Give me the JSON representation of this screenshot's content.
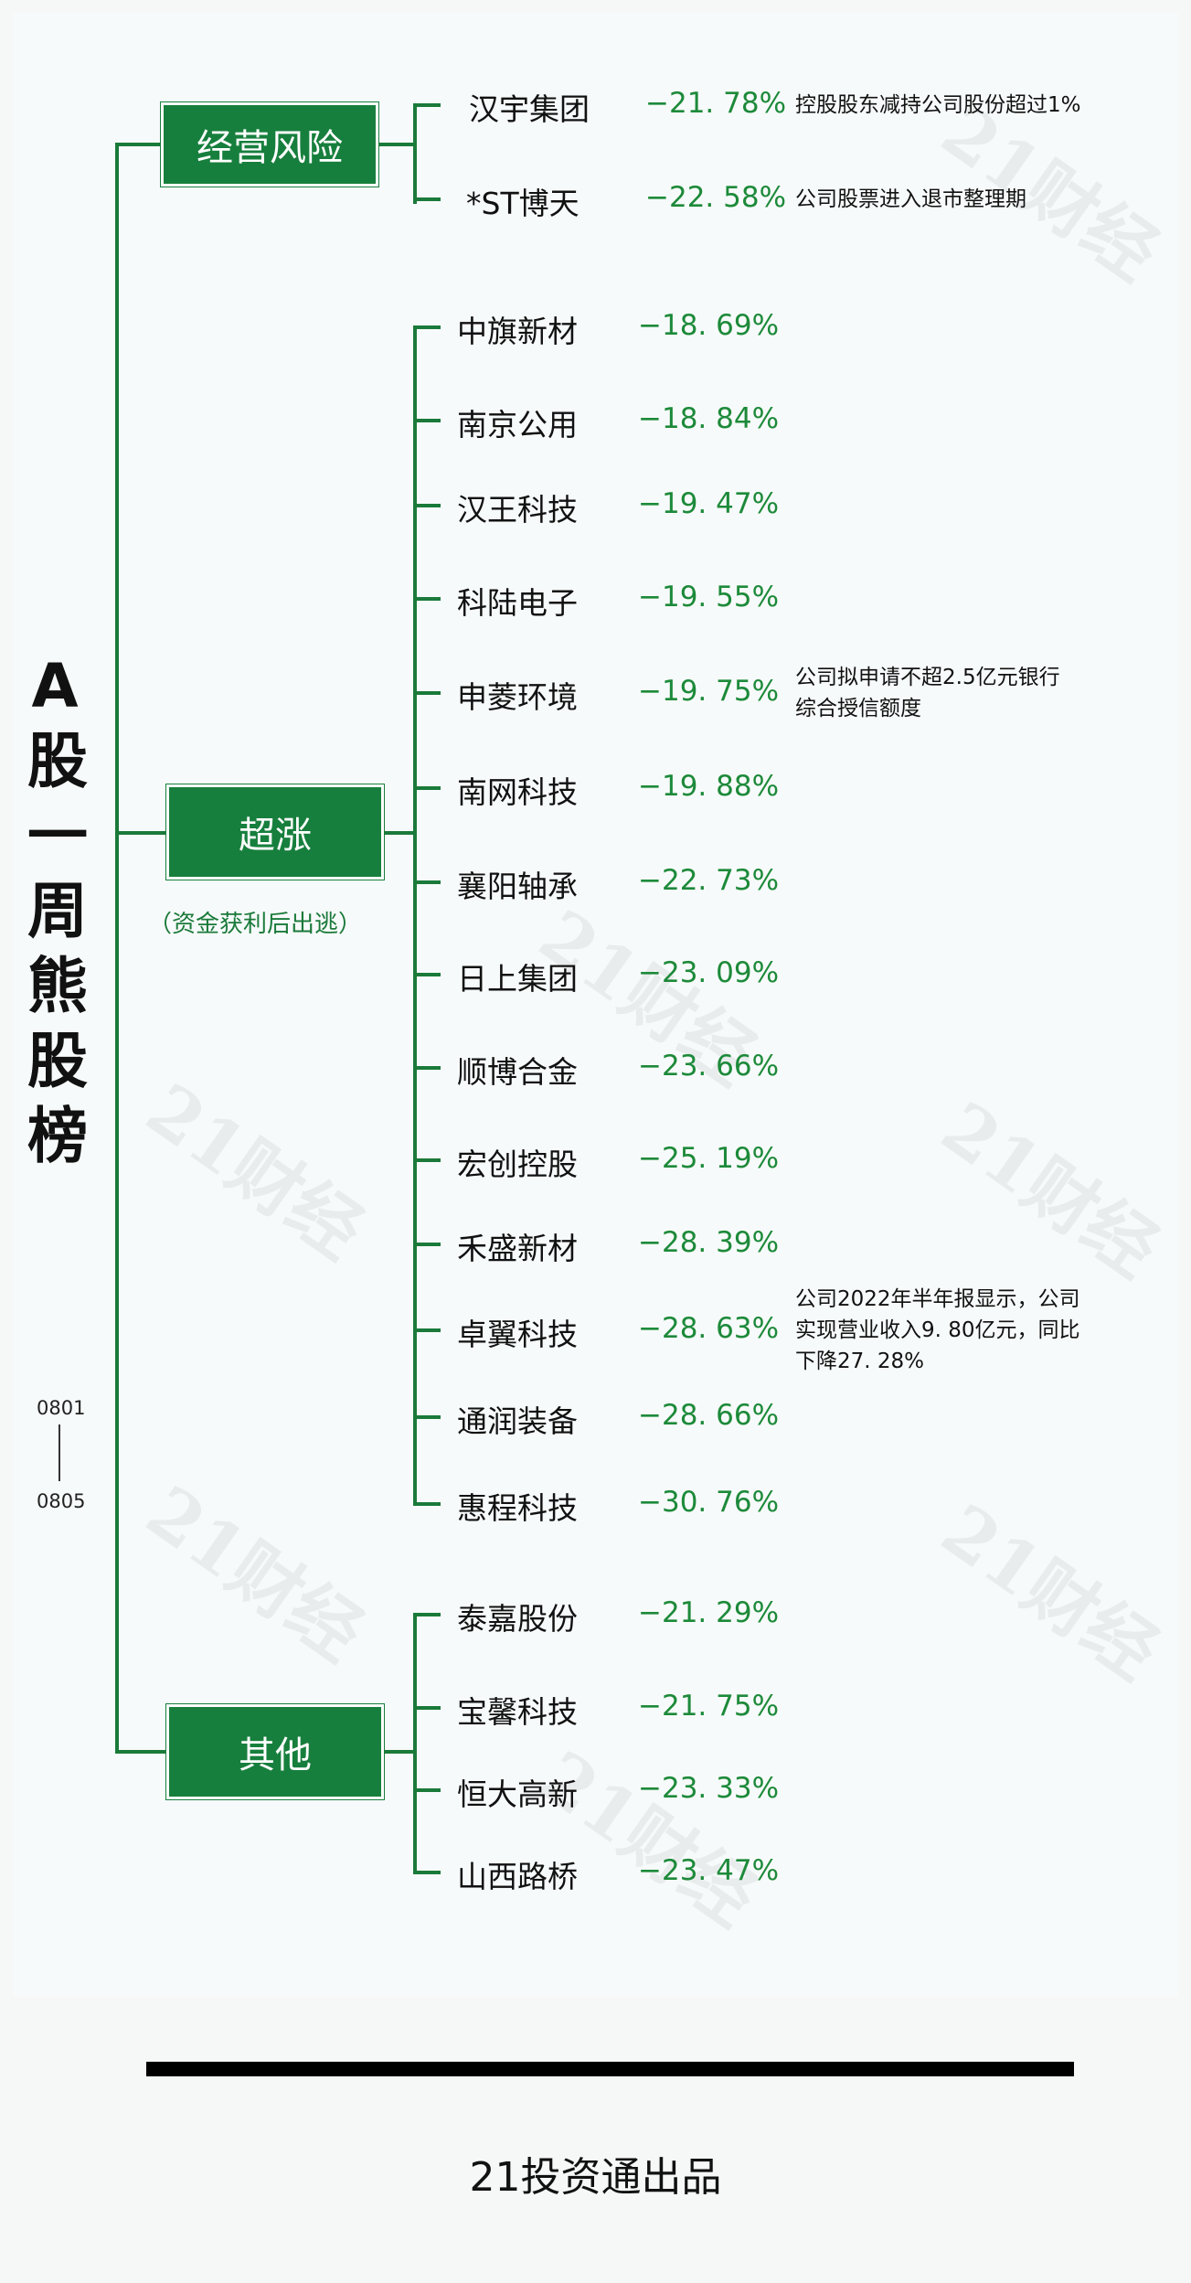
{
  "title_chars": [
    "A",
    "股",
    "一",
    "周",
    "熊",
    "股",
    "榜"
  ],
  "date_range": {
    "start": "0801",
    "end": "0805"
  },
  "watermark": "21财经",
  "categories": [
    {
      "label": "经营风险",
      "sub": ""
    },
    {
      "label": "超涨",
      "sub": "（资金获利后出逃）"
    },
    {
      "label": "其他",
      "sub": ""
    }
  ],
  "stocks": [
    {
      "name": "汉宇集团",
      "change": "−21. 78%",
      "note": "控股股东减持公司股份超过1%"
    },
    {
      "name": "*ST博天",
      "change": "−22. 58%",
      "note": "公司股票进入退市整理期"
    },
    {
      "name": "中旗新材",
      "change": "−18. 69%",
      "note": ""
    },
    {
      "name": "南京公用",
      "change": "−18. 84%",
      "note": ""
    },
    {
      "name": "汉王科技",
      "change": "−19. 47%",
      "note": ""
    },
    {
      "name": "科陆电子",
      "change": "−19. 55%",
      "note": ""
    },
    {
      "name": "申菱环境",
      "change": "−19. 75%",
      "note": "公司拟申请不超2.5亿元银行\n综合授信额度"
    },
    {
      "name": "南网科技",
      "change": "−19. 88%",
      "note": ""
    },
    {
      "name": "襄阳轴承",
      "change": "−22. 73%",
      "note": ""
    },
    {
      "name": "日上集团",
      "change": "−23. 09%",
      "note": ""
    },
    {
      "name": "顺博合金",
      "change": "−23. 66%",
      "note": ""
    },
    {
      "name": "宏创控股",
      "change": "−25. 19%",
      "note": ""
    },
    {
      "name": "禾盛新材",
      "change": "−28. 39%",
      "note": ""
    },
    {
      "name": "卓翼科技",
      "change": "−28. 63%",
      "note": "公司2022年半年报显示，公司\n实现营业收入9. 80亿元，同比\n下降27. 28%"
    },
    {
      "name": "通润装备",
      "change": "−28. 66%",
      "note": ""
    },
    {
      "name": "惠程科技",
      "change": "−30. 76%",
      "note": ""
    },
    {
      "name": "泰嘉股份",
      "change": "−21. 29%",
      "note": ""
    },
    {
      "name": "宝馨科技",
      "change": "−21. 75%",
      "note": ""
    },
    {
      "name": "恒大高新",
      "change": "−23. 33%",
      "note": ""
    },
    {
      "name": "山西路桥",
      "change": "−23. 47%",
      "note": ""
    }
  ],
  "footer": "21投资通出品",
  "colors": {
    "green": "#177f3d",
    "pct_green": "#1d8a3a",
    "line": "#1a7a3a"
  }
}
